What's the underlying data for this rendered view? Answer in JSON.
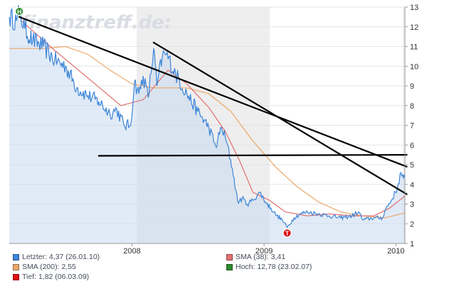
{
  "chart_data": {
    "type": "line",
    "watermark": "finanztreff.de:",
    "x_ticks": [
      "2008",
      "2009",
      "2010"
    ],
    "y_ticks": [
      1,
      2,
      3,
      4,
      5,
      6,
      7,
      8,
      9,
      10,
      11,
      12,
      13
    ],
    "ylim": [
      1,
      13
    ],
    "xlim": [
      "2007-01-26",
      "2010-01-26"
    ],
    "grid": "horizontal",
    "legend_position": "bottom-left",
    "series": [
      {
        "name": "Letzter: 4,37 (26.01.10)",
        "color": "#3c85d8",
        "points": [
          [
            "2007-01-26",
            12.5
          ],
          [
            "2007-02-15",
            12.3
          ],
          [
            "2007-02-23",
            12.78
          ],
          [
            "2007-03-10",
            11.9
          ],
          [
            "2007-04-01",
            11.3
          ],
          [
            "2007-05-01",
            11.0
          ],
          [
            "2007-06-01",
            10.3
          ],
          [
            "2007-07-01",
            10.0
          ],
          [
            "2007-08-01",
            8.9
          ],
          [
            "2007-09-01",
            8.5
          ],
          [
            "2007-10-01",
            8.2
          ],
          [
            "2007-11-01",
            7.6
          ],
          [
            "2007-11-20",
            7.8
          ],
          [
            "2007-12-10",
            7.0
          ],
          [
            "2007-12-28",
            7.0
          ],
          [
            "2008-01-08",
            9.2
          ],
          [
            "2008-01-20",
            8.6
          ],
          [
            "2008-02-01",
            9.5
          ],
          [
            "2008-02-15",
            8.4
          ],
          [
            "2008-03-01",
            10.9
          ],
          [
            "2008-03-10",
            9.0
          ],
          [
            "2008-03-25",
            10.5
          ],
          [
            "2008-04-05",
            10.6
          ],
          [
            "2008-05-01",
            9.6
          ],
          [
            "2008-06-01",
            8.6
          ],
          [
            "2008-07-01",
            7.7
          ],
          [
            "2008-08-01",
            6.9
          ],
          [
            "2008-08-20",
            5.9
          ],
          [
            "2008-09-05",
            6.9
          ],
          [
            "2008-09-20",
            6.1
          ],
          [
            "2008-10-05",
            4.8
          ],
          [
            "2008-10-20",
            3.1
          ],
          [
            "2008-11-01",
            3.3
          ],
          [
            "2008-11-15",
            3.0
          ],
          [
            "2008-12-01",
            3.2
          ],
          [
            "2008-12-20",
            3.6
          ],
          [
            "2009-01-05",
            3.1
          ],
          [
            "2009-01-20",
            2.8
          ],
          [
            "2009-02-05",
            2.4
          ],
          [
            "2009-02-20",
            2.2
          ],
          [
            "2009-03-06",
            1.82
          ],
          [
            "2009-03-25",
            2.3
          ],
          [
            "2009-04-10",
            2.5
          ],
          [
            "2009-05-01",
            2.6
          ],
          [
            "2009-06-01",
            2.5
          ],
          [
            "2009-07-01",
            2.4
          ],
          [
            "2009-08-01",
            2.3
          ],
          [
            "2009-09-01",
            2.4
          ],
          [
            "2009-09-20",
            2.6
          ],
          [
            "2009-10-01",
            2.2
          ],
          [
            "2009-11-01",
            2.3
          ],
          [
            "2009-11-25",
            2.3
          ],
          [
            "2009-12-05",
            2.8
          ],
          [
            "2009-12-20",
            3.2
          ],
          [
            "2010-01-05",
            3.8
          ],
          [
            "2010-01-15",
            4.6
          ],
          [
            "2010-01-22",
            4.3
          ],
          [
            "2010-01-26",
            4.37
          ]
        ]
      },
      {
        "name": "SMA (38): 3,41",
        "color": "#e07070",
        "points": [
          [
            "2007-03-01",
            12.3
          ],
          [
            "2007-06-01",
            10.8
          ],
          [
            "2007-09-01",
            9.4
          ],
          [
            "2007-12-01",
            8.0
          ],
          [
            "2008-02-01",
            8.3
          ],
          [
            "2008-04-10",
            9.8
          ],
          [
            "2008-06-01",
            9.1
          ],
          [
            "2008-08-01",
            7.9
          ],
          [
            "2008-09-15",
            6.7
          ],
          [
            "2008-10-25",
            5.2
          ],
          [
            "2008-12-01",
            3.6
          ],
          [
            "2009-01-15",
            3.2
          ],
          [
            "2009-03-01",
            2.6
          ],
          [
            "2009-05-01",
            2.4
          ],
          [
            "2009-07-01",
            2.5
          ],
          [
            "2009-09-01",
            2.4
          ],
          [
            "2009-11-01",
            2.4
          ],
          [
            "2009-12-15",
            2.8
          ],
          [
            "2010-01-26",
            3.41
          ]
        ]
      },
      {
        "name": "SMA (200): 2,55",
        "color": "#eba86a",
        "points": [
          [
            "2007-01-26",
            10.9
          ],
          [
            "2007-05-01",
            10.9
          ],
          [
            "2007-07-01",
            11.0
          ],
          [
            "2007-09-01",
            10.6
          ],
          [
            "2007-11-01",
            9.8
          ],
          [
            "2008-01-01",
            9.1
          ],
          [
            "2008-03-01",
            8.9
          ],
          [
            "2008-06-01",
            8.9
          ],
          [
            "2008-08-01",
            8.6
          ],
          [
            "2008-10-01",
            7.7
          ],
          [
            "2008-12-01",
            6.2
          ],
          [
            "2009-02-01",
            4.9
          ],
          [
            "2009-04-01",
            3.9
          ],
          [
            "2009-06-01",
            3.1
          ],
          [
            "2009-08-01",
            2.6
          ],
          [
            "2009-10-01",
            2.4
          ],
          [
            "2009-12-01",
            2.3
          ],
          [
            "2010-01-26",
            2.55
          ]
        ]
      }
    ],
    "markers": [
      {
        "name": "Hoch: 12,78 (23.02.07)",
        "letter": "H",
        "color": "#2e8b2e",
        "x": "2007-02-23",
        "y": 12.78
      },
      {
        "name": "Tief: 1,82 (06.03.09)",
        "letter": "T",
        "color": "#dd1111",
        "x": "2009-03-06",
        "y": 1.82
      }
    ],
    "trendlines": [
      {
        "color": "#000000",
        "from": [
          "2007-02-23",
          12.5
        ],
        "to": [
          "2010-01-31",
          4.9
        ]
      },
      {
        "color": "#000000",
        "from": [
          "2008-03-01",
          11.2
        ],
        "to": [
          "2010-01-31",
          3.5
        ]
      },
      {
        "color": "#000000",
        "from": [
          "2007-10-01",
          5.45
        ],
        "to": [
          "2010-01-31",
          5.5
        ]
      }
    ],
    "legend": [
      {
        "label": "Letzter: 4,37 (26.01.10)",
        "color": "#3c85d8"
      },
      {
        "label": "SMA (38): 3,41",
        "color": "#e07070"
      },
      {
        "label": "SMA (200): 2,55",
        "color": "#eba86a"
      },
      {
        "label": "Hoch: 12,78 (23.02.07)",
        "color": "#2e8b2e"
      },
      {
        "label": "Tief: 1,82 (06.03.09)",
        "color": "#dd1111"
      }
    ]
  }
}
